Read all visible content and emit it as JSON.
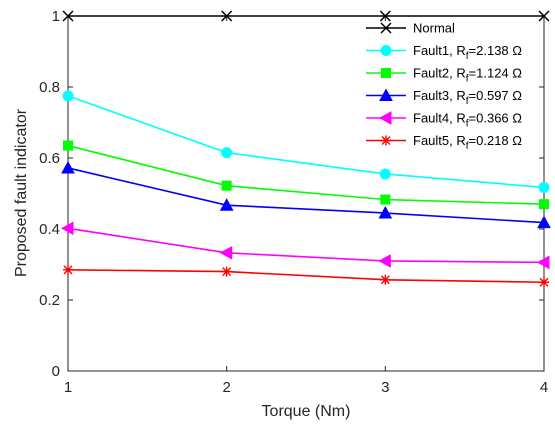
{
  "chart_data": {
    "type": "line",
    "title": "",
    "xlabel": "Torque (Nm)",
    "ylabel": "Proposed fault indicator",
    "x": [
      1,
      2,
      3,
      4
    ],
    "xlim": [
      1,
      4
    ],
    "ylim": [
      0,
      1
    ],
    "xticks": [
      "1",
      "2",
      "3",
      "4"
    ],
    "yticks": [
      "0",
      "0.2",
      "0.4",
      "0.6",
      "0.8",
      "1"
    ],
    "grid": false,
    "legend_position": "top-right",
    "series": [
      {
        "name": "Normal",
        "label_main": "Normal",
        "label_sub": "",
        "label_rest": "",
        "color": "#000000",
        "marker": "x-mark",
        "values": [
          1.0,
          1.0,
          1.0,
          1.0
        ]
      },
      {
        "name": "Fault1, Rf=2.138 Ω",
        "label_main": "Fault1, R",
        "label_sub": "f",
        "label_rest": "=2.138 Ω",
        "color": "#00ffff",
        "marker": "circle",
        "values": [
          0.775,
          0.615,
          0.555,
          0.517
        ]
      },
      {
        "name": "Fault2, Rf=1.124 Ω",
        "label_main": "Fault2, R",
        "label_sub": "f",
        "label_rest": "=1.124 Ω",
        "color": "#00ff00",
        "marker": "square",
        "values": [
          0.635,
          0.522,
          0.483,
          0.47
        ]
      },
      {
        "name": "Fault3, Rf=0.597 Ω",
        "label_main": "Fault3, R",
        "label_sub": "f",
        "label_rest": "=0.597 Ω",
        "color": "#0000ff",
        "marker": "triangle-up",
        "values": [
          0.572,
          0.467,
          0.445,
          0.418
        ]
      },
      {
        "name": "Fault4, Rf=0.366 Ω",
        "label_main": "Fault4, R",
        "label_sub": "f",
        "label_rest": "=0.366 Ω",
        "color": "#ff00ff",
        "marker": "triangle-left",
        "values": [
          0.402,
          0.333,
          0.31,
          0.306
        ]
      },
      {
        "name": "Fault5, Rf=0.218 Ω",
        "label_main": "Fault5, R",
        "label_sub": "f",
        "label_rest": "=0.218 Ω",
        "color": "#ff0000",
        "marker": "asterisk",
        "values": [
          0.285,
          0.28,
          0.257,
          0.25
        ]
      }
    ]
  }
}
